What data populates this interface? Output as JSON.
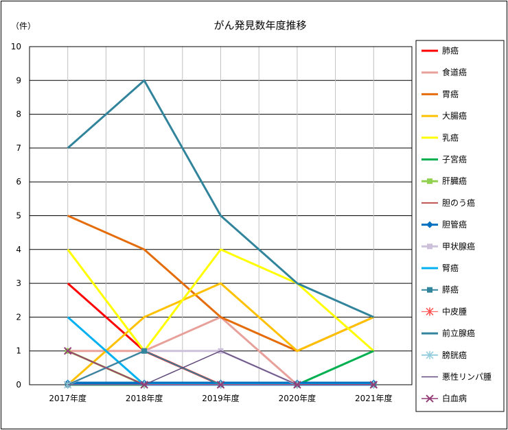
{
  "chart_data": {
    "type": "line",
    "title": "がん発見数年度推移",
    "ylabel": "（件）",
    "xlabel": "",
    "categories": [
      "2017年度",
      "2018年度",
      "2019年度",
      "2020年度",
      "2021年度"
    ],
    "ylim": [
      0,
      10
    ],
    "yticks": [
      0,
      1,
      2,
      3,
      4,
      5,
      6,
      7,
      8,
      9,
      10
    ],
    "grid": true,
    "legend_position": "right",
    "series": [
      {
        "name": "肺癌",
        "color": "#ff0000",
        "marker": "none",
        "width": 3,
        "values": [
          3,
          1,
          0,
          0,
          0
        ]
      },
      {
        "name": "食道癌",
        "color": "#e8a09a",
        "marker": "none",
        "width": 3,
        "values": [
          1,
          1,
          2,
          0,
          0
        ]
      },
      {
        "name": "胃癌",
        "color": "#e46c0a",
        "marker": "none",
        "width": 3,
        "values": [
          5,
          4,
          2,
          1,
          2
        ]
      },
      {
        "name": "大腸癌",
        "color": "#ffc000",
        "marker": "none",
        "width": 3,
        "values": [
          0,
          2,
          3,
          1,
          2
        ]
      },
      {
        "name": "乳癌",
        "color": "#ffff00",
        "marker": "none",
        "width": 3,
        "values": [
          4,
          1,
          4,
          3,
          1
        ]
      },
      {
        "name": "子宮癌",
        "color": "#00b050",
        "marker": "none",
        "width": 3,
        "values": [
          0,
          0,
          0,
          0,
          1
        ]
      },
      {
        "name": "肝臓癌",
        "color": "#92d050",
        "marker": "square",
        "width": 3,
        "values": [
          1,
          0,
          0,
          0,
          0
        ]
      },
      {
        "name": "胆のう癌",
        "color": "#c0504d",
        "marker": "none",
        "width": 2,
        "values": [
          1,
          0,
          0,
          0,
          0
        ]
      },
      {
        "name": "胆管癌",
        "color": "#0070c0",
        "marker": "diamond",
        "width": 4,
        "values": [
          0.05,
          0.05,
          0.05,
          0.05,
          0.05
        ]
      },
      {
        "name": "甲状腺癌",
        "color": "#ccc0da",
        "marker": "square",
        "width": 3,
        "values": [
          0,
          1,
          1,
          0,
          0
        ]
      },
      {
        "name": "腎癌",
        "color": "#00b0f0",
        "marker": "none",
        "width": 3,
        "values": [
          2,
          0,
          0,
          0,
          0
        ]
      },
      {
        "name": "膵癌",
        "color": "#31859c",
        "marker": "square",
        "width": 2,
        "values": [
          0,
          1,
          0,
          0,
          0
        ]
      },
      {
        "name": "中皮腫",
        "color": "#ff4d4d",
        "marker": "star",
        "width": 1,
        "values": [
          0,
          0,
          0,
          0,
          0
        ]
      },
      {
        "name": "前立腺癌",
        "color": "#31849b",
        "marker": "none",
        "width": 3,
        "values": [
          7,
          9,
          5,
          3,
          2
        ]
      },
      {
        "name": "膀胱癌",
        "color": "#93cddd",
        "marker": "star",
        "width": 2,
        "values": [
          0,
          0,
          0,
          0,
          0
        ]
      },
      {
        "name": "悪性リンパ腫",
        "color": "#604a7b",
        "marker": "none",
        "width": 1.5,
        "values": [
          0,
          0,
          1,
          0,
          0
        ]
      },
      {
        "name": "白血病",
        "color": "#943d78",
        "marker": "x",
        "width": 1.5,
        "values": [
          1,
          0,
          0,
          0,
          0
        ]
      }
    ]
  }
}
